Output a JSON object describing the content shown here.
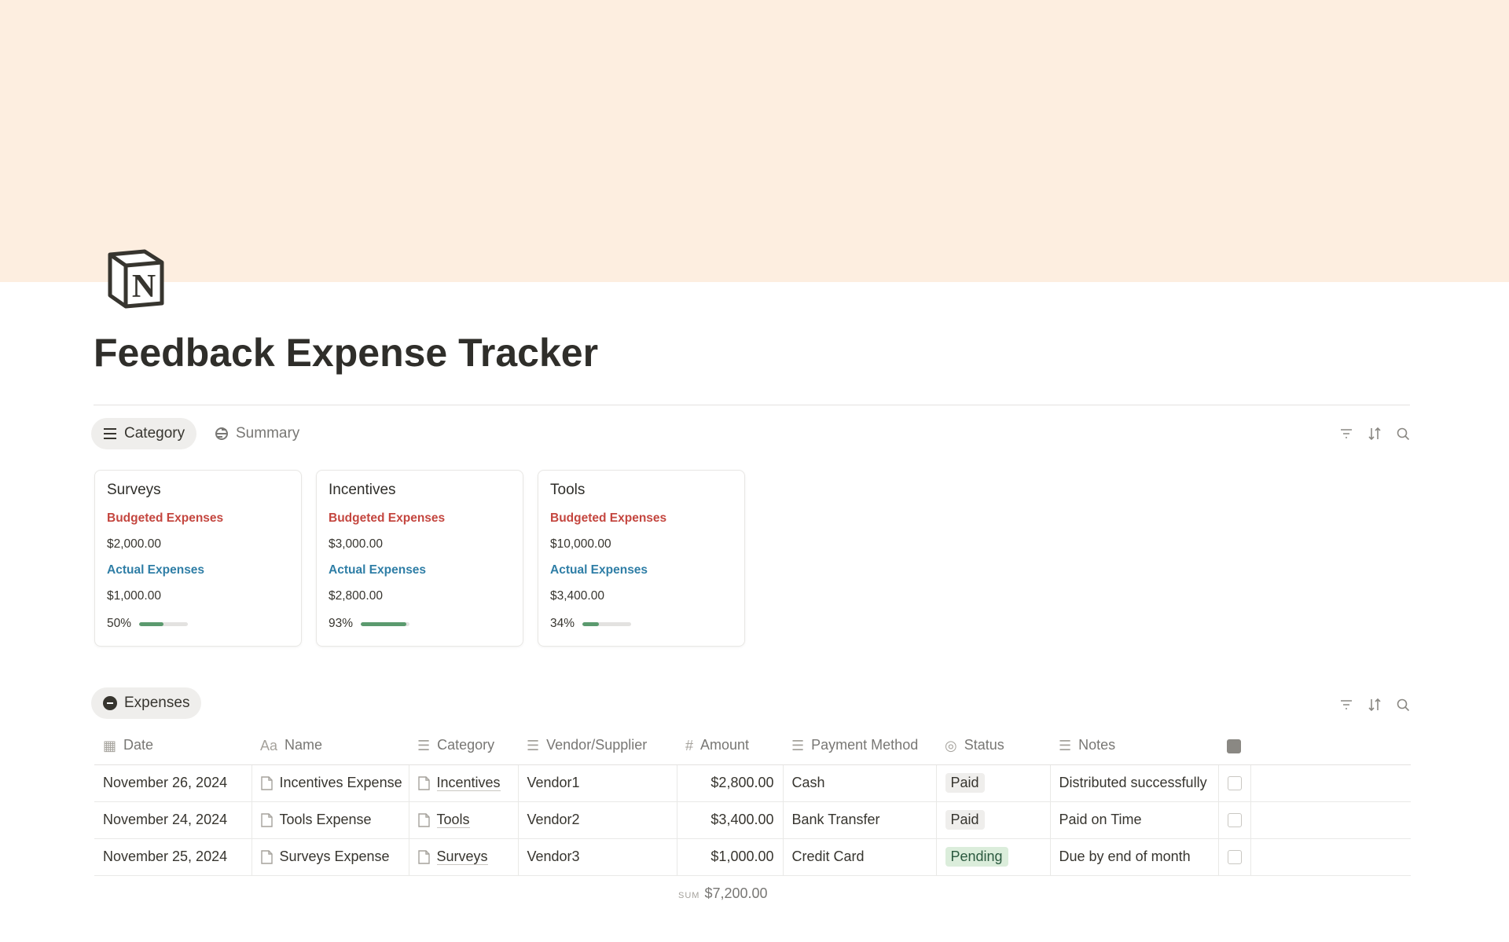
{
  "page": {
    "title": "Feedback Expense Tracker",
    "banner_color": "#fdeee0"
  },
  "views": {
    "tabs": [
      {
        "label": "Category",
        "icon": "list-icon",
        "active": true
      },
      {
        "label": "Summary",
        "icon": "chart-icon",
        "active": false
      }
    ]
  },
  "cards": [
    {
      "title": "Surveys",
      "budget_label": "Budgeted Expenses",
      "budget": "$2,000.00",
      "actual_label": "Actual Expenses",
      "actual": "$1,000.00",
      "percent_label": "50%",
      "percent": 50
    },
    {
      "title": "Incentives",
      "budget_label": "Budgeted Expenses",
      "budget": "$3,000.00",
      "actual_label": "Actual Expenses",
      "actual": "$2,800.00",
      "percent_label": "93%",
      "percent": 93
    },
    {
      "title": "Tools",
      "budget_label": "Budgeted Expenses",
      "budget": "$10,000.00",
      "actual_label": "Actual Expenses",
      "actual": "$3,400.00",
      "percent_label": "34%",
      "percent": 34
    }
  ],
  "expenses": {
    "view_label": "Expenses",
    "columns": [
      "Date",
      "Name",
      "Category",
      "Vendor/Supplier",
      "Amount",
      "Payment Method",
      "Status",
      "Notes"
    ],
    "rows": [
      {
        "date": "November 26, 2024",
        "name": "Incentives Expense",
        "category": "Incentives",
        "vendor": "Vendor1",
        "amount": "$2,800.00",
        "payment": "Cash",
        "status": "Paid",
        "notes": "Distributed successfully",
        "checked": false
      },
      {
        "date": "November 24, 2024",
        "name": "Tools Expense",
        "category": "Tools",
        "vendor": "Vendor2",
        "amount": "$3,400.00",
        "payment": "Bank Transfer",
        "status": "Paid",
        "notes": "Paid on Time",
        "checked": false
      },
      {
        "date": "November 25, 2024",
        "name": "Surveys Expense",
        "category": "Surveys",
        "vendor": "Vendor3",
        "amount": "$1,000.00",
        "payment": "Credit Card",
        "status": "Pending",
        "notes": "Due by end of month",
        "checked": false
      }
    ],
    "sum_label": "SUM",
    "sum_value": "$7,200.00"
  },
  "colors": {
    "budget_label": "#c4463f",
    "actual_label": "#2f7ea6",
    "progress": "#5b9a6e",
    "pending_tag": "#dbeddb"
  }
}
